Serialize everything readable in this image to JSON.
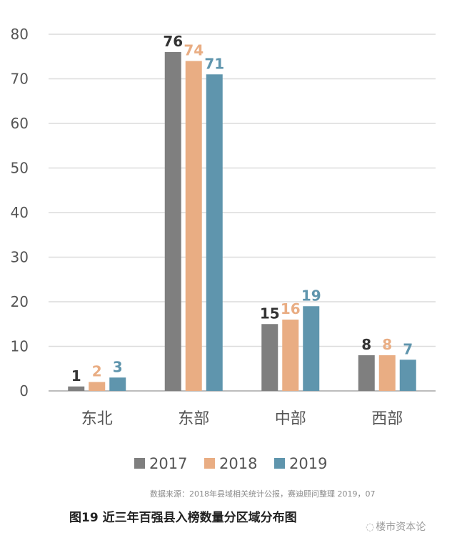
{
  "chart_data": {
    "type": "bar",
    "categories": [
      "东北",
      "东部",
      "中部",
      "西部"
    ],
    "series": [
      {
        "name": "2017",
        "values": [
          1,
          76,
          15,
          8
        ],
        "color": "#7f7f7f"
      },
      {
        "name": "2018",
        "values": [
          2,
          74,
          16,
          8
        ],
        "color": "#e9ad83"
      },
      {
        "name": "2019",
        "values": [
          3,
          71,
          19,
          7
        ],
        "color": "#5f95ad"
      }
    ],
    "ylim": [
      0,
      80
    ],
    "yticks": [
      0,
      10,
      20,
      30,
      40,
      50,
      60,
      70,
      80
    ],
    "grid": true,
    "legend_position": "bottom",
    "data_labels": true
  },
  "source_note": "数据来源：2018年县域相关统计公报，赛迪顾问整理  2019，07",
  "caption": "图19  近三年百强县入榜数量分区域分布图",
  "watermark": "楼市资本论",
  "watermark_icon": "wechat-icon"
}
